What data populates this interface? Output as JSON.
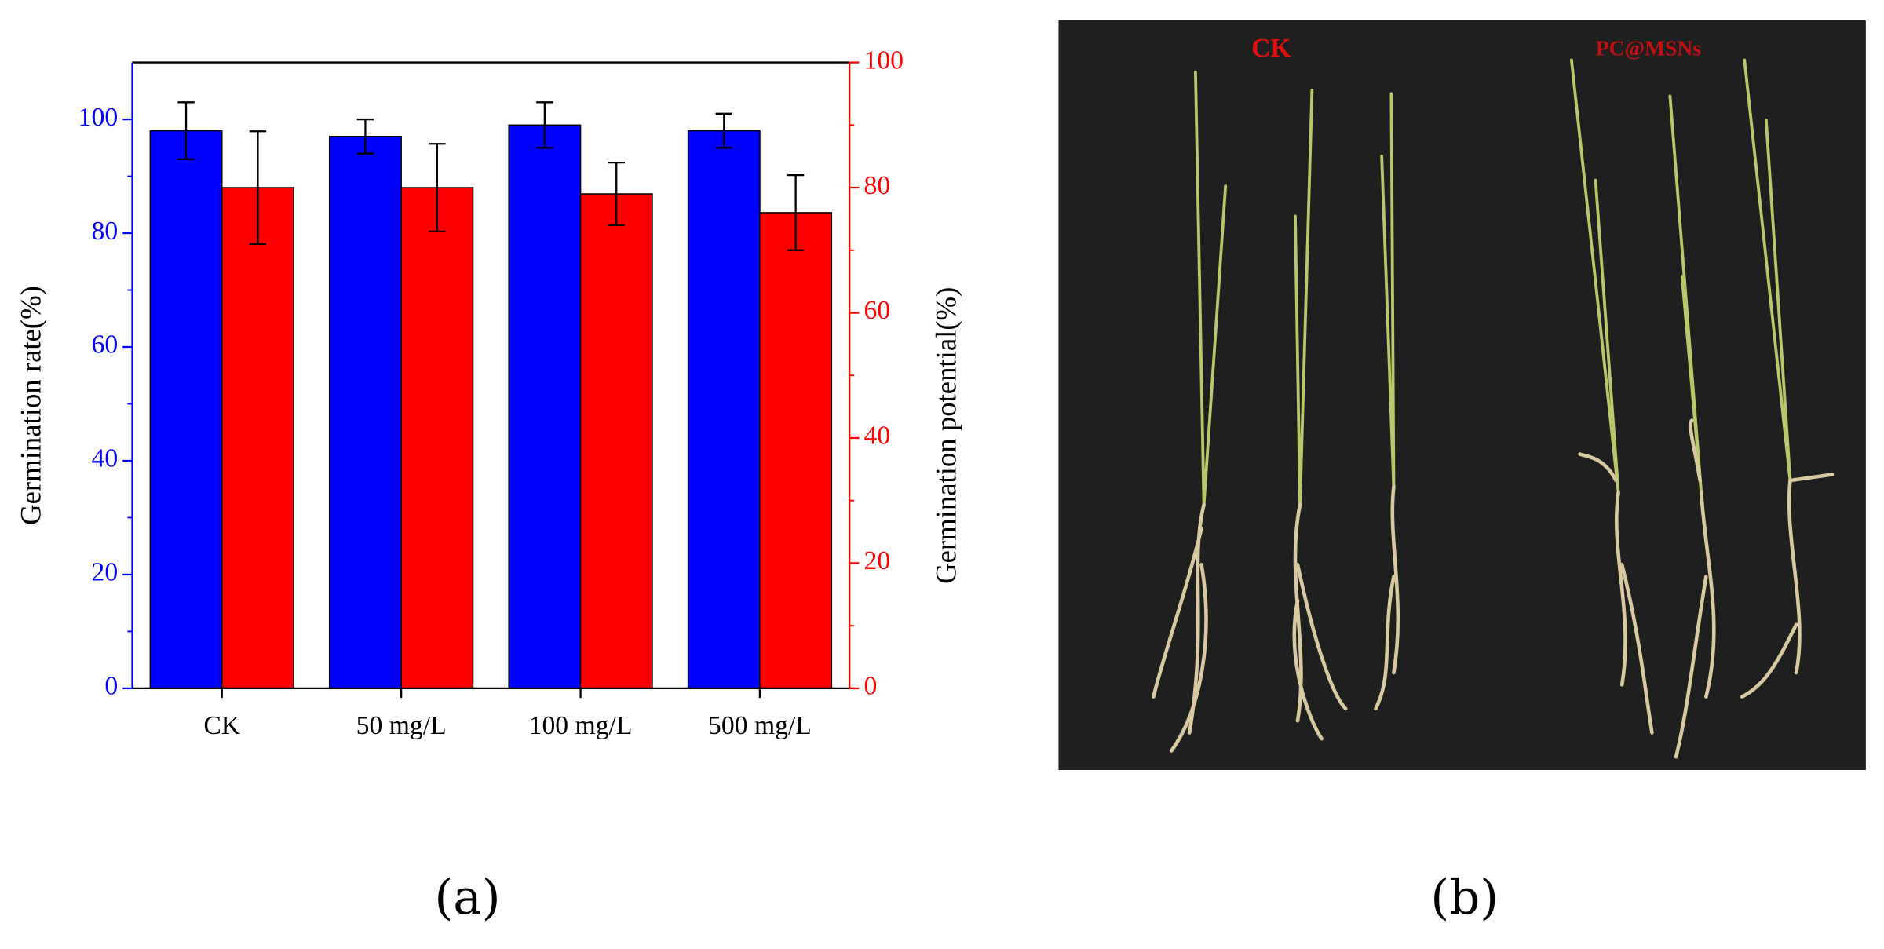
{
  "chart_data": {
    "type": "bar",
    "ylabel": "Germination rate(%)",
    "y2label": "Germination potential(%)",
    "categories": [
      "CK",
      "50 mg/L",
      "100 mg/L",
      "500 mg/L"
    ],
    "series": [
      {
        "color": "#0000ff",
        "values": [
          98,
          97,
          99,
          98
        ],
        "errors": [
          5,
          3,
          4,
          3
        ]
      },
      {
        "color": "#ff0000",
        "axis": "y2",
        "values": [
          80,
          80,
          79,
          76
        ],
        "errors": [
          9,
          7,
          5,
          6
        ]
      }
    ],
    "ylim": [
      0,
      110
    ],
    "yticks": [
      0,
      20,
      40,
      60,
      80,
      100
    ],
    "ycolor": "#0000ff",
    "y2lim": [
      0,
      100
    ],
    "y2ticks": [
      0,
      20,
      40,
      60,
      80,
      100
    ],
    "y2color": "#ff0000"
  },
  "photo": {
    "labels": [
      "CK",
      "PC@MSNs"
    ]
  },
  "captions": [
    "(a)",
    "(b)"
  ]
}
